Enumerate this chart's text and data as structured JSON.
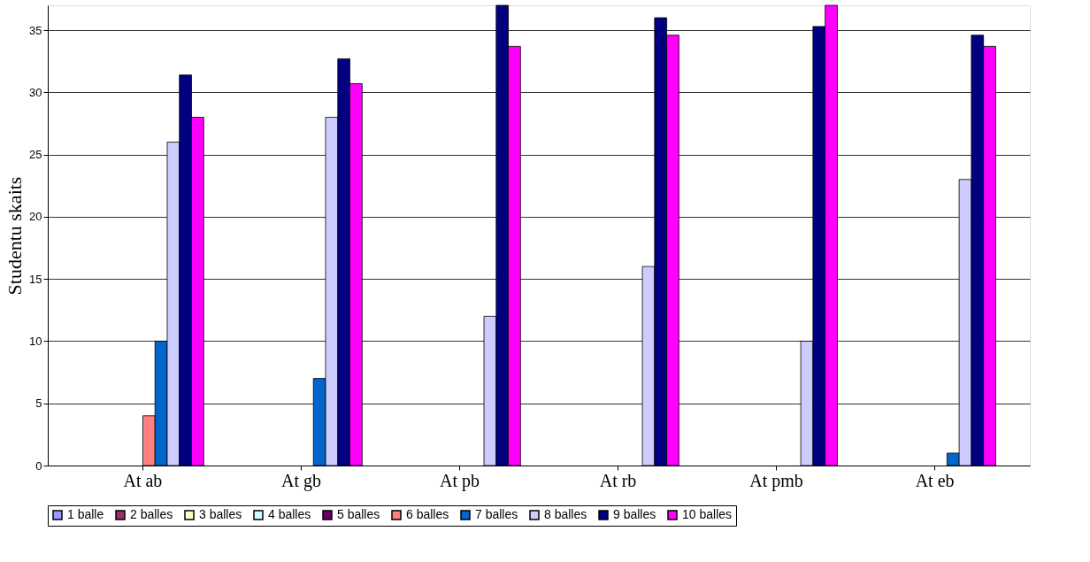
{
  "chart_data": {
    "type": "bar",
    "ylabel": "Studentu skaits",
    "categories": [
      "At ab",
      "At gb",
      "At pb",
      "At rb",
      "At pmb",
      "At eb"
    ],
    "series": [
      {
        "name": "1 balle",
        "color": "#9999ff",
        "values": [
          null,
          null,
          null,
          null,
          null,
          null
        ]
      },
      {
        "name": "2 balles",
        "color": "#993366",
        "values": [
          null,
          null,
          null,
          null,
          null,
          null
        ]
      },
      {
        "name": "3 balles",
        "color": "#ffffcc",
        "values": [
          null,
          null,
          null,
          null,
          null,
          null
        ]
      },
      {
        "name": "4 balles",
        "color": "#ccffff",
        "values": [
          null,
          null,
          null,
          null,
          null,
          null
        ]
      },
      {
        "name": "5 balles",
        "color": "#660066",
        "values": [
          null,
          null,
          null,
          null,
          null,
          null
        ]
      },
      {
        "name": "6 balles",
        "color": "#ff8080",
        "values": [
          4,
          null,
          null,
          null,
          null,
          null
        ]
      },
      {
        "name": "7 balles",
        "color": "#0066cc",
        "values": [
          10,
          7,
          null,
          null,
          null,
          1
        ]
      },
      {
        "name": "8 balles",
        "color": "#ccccff",
        "values": [
          26,
          28,
          12,
          16,
          10,
          23
        ]
      },
      {
        "name": "9 balles",
        "color": "#000080",
        "values": [
          31.4,
          32.7,
          37,
          36,
          35.3,
          34.6
        ]
      },
      {
        "name": "10 balles",
        "color": "#ff00ff",
        "values": [
          28,
          30.7,
          33.7,
          34.6,
          37,
          33.7
        ]
      }
    ],
    "ylim": [
      0,
      37
    ],
    "yticks": [
      0,
      5,
      10,
      15,
      20,
      25,
      30,
      35
    ],
    "grid": "y",
    "legend": "bottom"
  }
}
